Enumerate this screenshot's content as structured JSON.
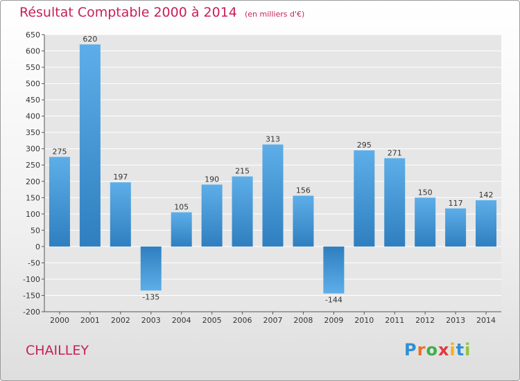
{
  "chart_data": {
    "type": "bar",
    "title": "Résultat Comptable 2000 à 2014",
    "unit_note": "(en milliers d'€)",
    "categories": [
      "2000",
      "2001",
      "2002",
      "2003",
      "2004",
      "2005",
      "2006",
      "2007",
      "2008",
      "2009",
      "2010",
      "2011",
      "2012",
      "2013",
      "2014"
    ],
    "values": [
      275,
      620,
      197,
      -135,
      105,
      190,
      215,
      313,
      156,
      -144,
      295,
      271,
      150,
      117,
      142
    ],
    "value_labels": [
      "275",
      "620",
      "197",
      "-135",
      "105",
      "190",
      "215",
      "313",
      "156",
      "-144",
      "295",
      "271",
      "150",
      "117",
      "142"
    ],
    "ylim": [
      -200,
      650
    ],
    "yticks": [
      650,
      600,
      550,
      500,
      450,
      400,
      350,
      300,
      250,
      200,
      150,
      100,
      50,
      0,
      -50,
      -100,
      -150,
      -200
    ],
    "xlabel": "",
    "ylabel": "",
    "grid": true,
    "colors": {
      "bar_light": "#5daee8",
      "bar_dark": "#2f7fc0",
      "plot_bg": "#e6e6e6",
      "grid": "#ffffff"
    }
  },
  "footer": {
    "place": "CHAILLEY",
    "logo_text": "Proxiti"
  }
}
